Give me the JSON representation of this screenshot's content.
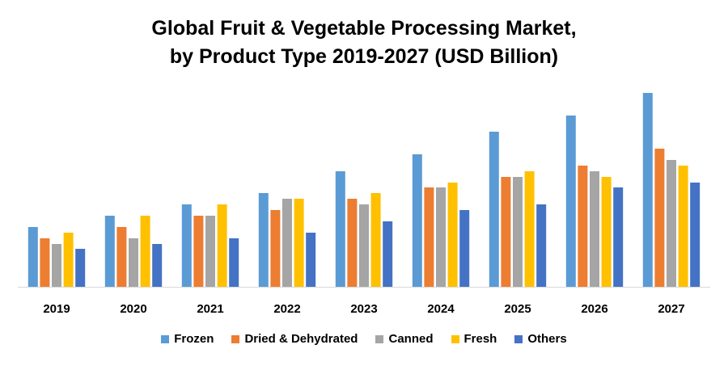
{
  "chart_data": {
    "type": "bar",
    "title_lines": [
      "Global Fruit & Vegetable Processing Market,",
      "by Product Type 2019-2027 (USD Billion)"
    ],
    "xlabel": "",
    "ylabel": "",
    "ylim": [
      0,
      250
    ],
    "grid": false,
    "legend_position": "bottom",
    "categories": [
      "2019",
      "2020",
      "2021",
      "2022",
      "2023",
      "2024",
      "2025",
      "2026",
      "2027"
    ],
    "series": [
      {
        "name": "Frozen",
        "color": "#5B9BD5",
        "values": [
          74,
          88,
          102,
          116,
          143,
          164,
          192,
          212,
          240
        ]
      },
      {
        "name": "Dried & Dehydrated",
        "color": "#ED7D31",
        "values": [
          60,
          74,
          88,
          95,
          109,
          123,
          136,
          150,
          171
        ]
      },
      {
        "name": "Canned",
        "color": "#A5A5A5",
        "values": [
          53,
          60,
          88,
          109,
          102,
          123,
          136,
          143,
          157
        ]
      },
      {
        "name": "Fresh",
        "color": "#FFC000",
        "values": [
          67,
          88,
          102,
          109,
          116,
          129,
          143,
          136,
          150
        ]
      },
      {
        "name": "Others",
        "color": "#4472C4",
        "values": [
          47,
          53,
          60,
          67,
          81,
          95,
          102,
          123,
          129
        ]
      }
    ]
  }
}
